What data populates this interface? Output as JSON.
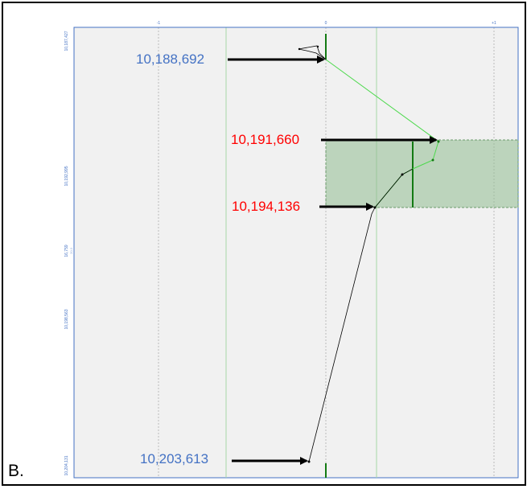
{
  "panel_label": "B.",
  "top_axis": {
    "ticks": [
      {
        "label": "-1"
      },
      {
        "label": "0"
      },
      {
        "label": "+1"
      }
    ]
  },
  "left_axis": {
    "ticks": [
      {
        "label": "10,187,427"
      },
      {
        "label": "10,192,995"
      },
      {
        "label": "10,198,563"
      },
      {
        "label": "10,204,131"
      }
    ],
    "mid_label": "16,759",
    "mid_sublabel": "20.3"
  },
  "callouts": [
    {
      "text": "10,188,692",
      "color": "#4472c4"
    },
    {
      "text": "10,191,660",
      "color": "#ff0000"
    },
    {
      "text": "10,194,136",
      "color": "#ff0000"
    },
    {
      "text": "10,203,613",
      "color": "#4472c4"
    }
  ],
  "colors": {
    "axis_blue": "#4472c4",
    "grid_gray": "#c8c8c8",
    "band_green": "#8fbc8f",
    "trace_green": "#4cd94c",
    "dark_green": "#137a13",
    "red": "#ff0000",
    "black": "#000000"
  }
}
